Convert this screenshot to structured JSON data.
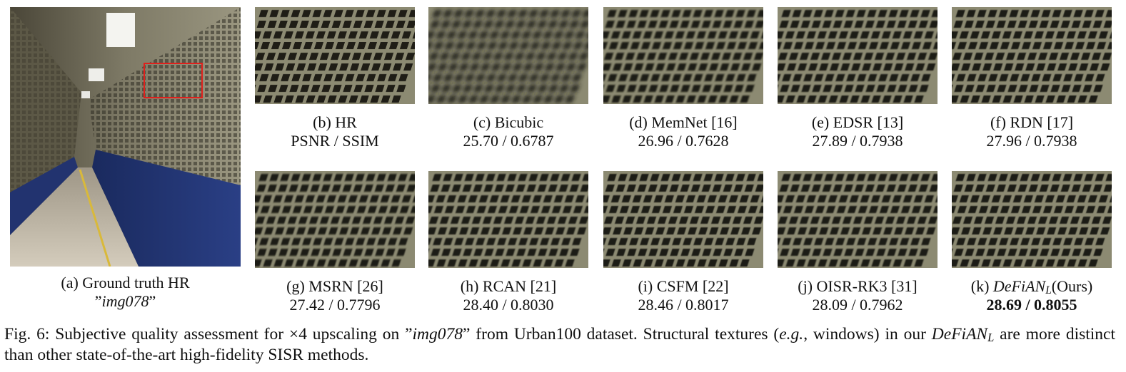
{
  "panels": [
    {
      "label": "(a) Ground truth HR",
      "line2": "img078"
    },
    {
      "label": "(b) HR",
      "line2": "PSNR / SSIM"
    },
    {
      "label": "(c) Bicubic",
      "line2": "25.70 / 0.6787"
    },
    {
      "label": "(d) MemNet [16]",
      "line2": "26.96 / 0.7628"
    },
    {
      "label": "(e) EDSR [13]",
      "line2": "27.89 / 0.7938"
    },
    {
      "label": "(f) RDN [17]",
      "line2": "27.96 / 0.7938"
    },
    {
      "label": "(g) MSRN [26]",
      "line2": "27.42 / 0.7796"
    },
    {
      "label": "(h) RCAN [21]",
      "line2": "28.40 / 0.8030"
    },
    {
      "label": "(i) CSFM [22]",
      "line2": "28.46 / 0.8017"
    },
    {
      "label": "(j) OISR-RK3 [31]",
      "line2": "28.09 / 0.7962"
    },
    {
      "label_prefix": "(k) ",
      "label_method": "DeFiAN",
      "label_sub": "L",
      "label_suffix": "(Ours)",
      "line2": "28.69 / 0.8055"
    }
  ],
  "caption": {
    "prefix": "Fig. 6: Subjective quality assessment for ×4 upscaling on ”",
    "image_name": "img078",
    "middle": "” from Urban100 dataset. Structural textures (",
    "eg": "e.g.",
    "after_eg": ", windows) in our ",
    "method": "DeFiAN",
    "method_sub": "L",
    "suffix": " are more distinct than other state-of-the-art high-fidelity SISR methods."
  },
  "colors": {
    "highlight_box": "#e0201c",
    "tunnel_wall": "#8a8672",
    "locker_blue": "#1d2f6e",
    "floor": "#b8b0a0",
    "stripe_yellow": "#d9b93a"
  }
}
